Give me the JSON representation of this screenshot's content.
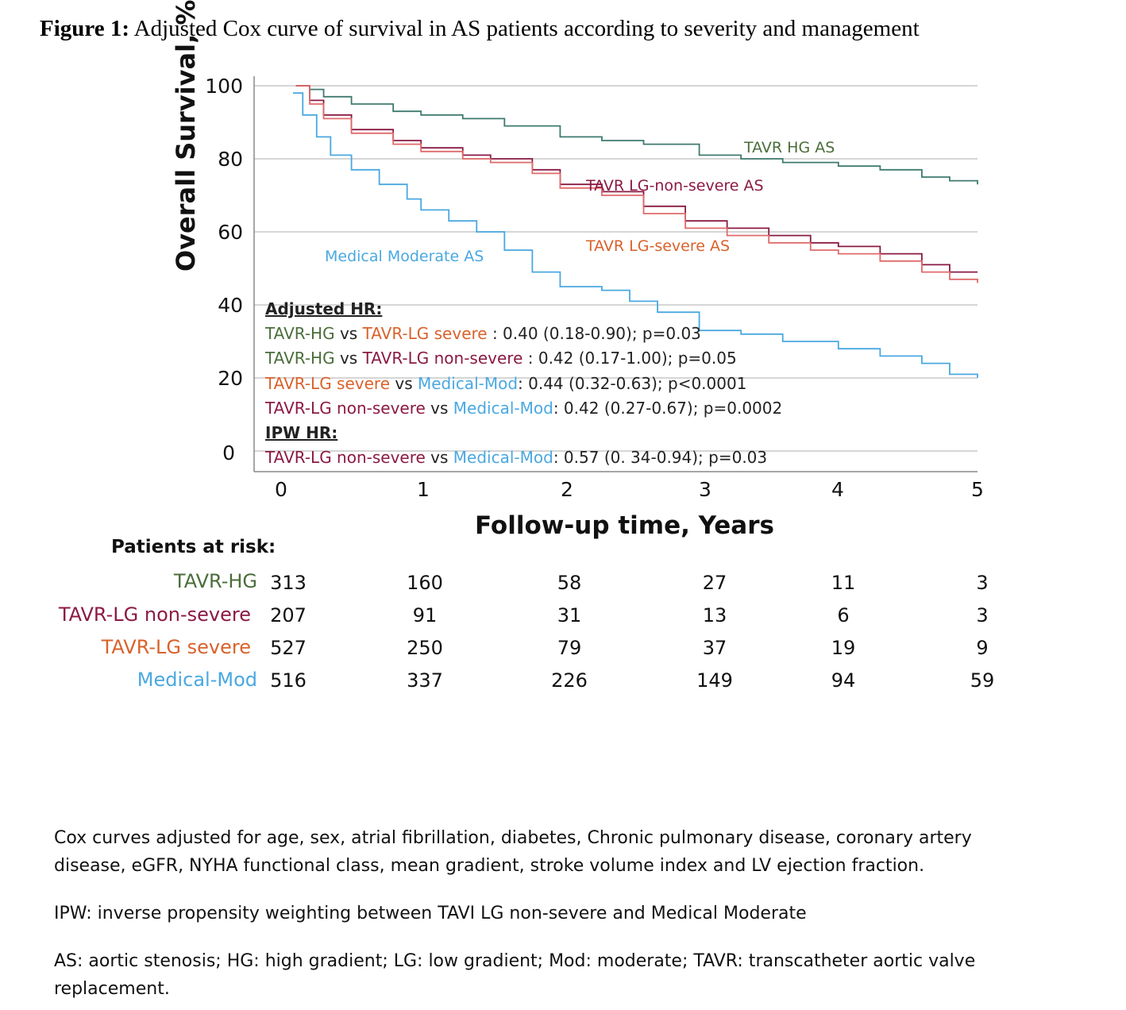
{
  "figure": {
    "title_bold": "Figure 1:",
    "title_rest": " Adjusted Cox curve of survival in AS patients according to severity and management"
  },
  "colors": {
    "tavr_hg": "#4a6e3a",
    "tavr_hg_line": "#3f7a6e",
    "tavr_lg_non_severe": "#8b1a44",
    "tavr_lg_severe": "#e06a6a",
    "medical_mod": "#4aa8e0"
  },
  "chart_data": {
    "type": "line",
    "title": "",
    "xlabel": "Follow-up time, Years",
    "ylabel": "Overall Survival, %",
    "xlim": [
      0,
      5
    ],
    "ylim": [
      0,
      100
    ],
    "x_ticks": [
      "0",
      "1",
      "2",
      "3",
      "4",
      "5"
    ],
    "y_ticks": [
      "100",
      "80",
      "60",
      "40",
      "20",
      "0"
    ],
    "grid": "horizontal",
    "series": [
      {
        "name": "TAVR HG AS",
        "key": "tavr_hg_line",
        "x": [
          0.1,
          0.2,
          0.3,
          0.5,
          0.8,
          1.0,
          1.3,
          1.6,
          2.0,
          2.3,
          2.6,
          3.0,
          3.3,
          3.6,
          4.0,
          4.3,
          4.6,
          4.8,
          5.0
        ],
        "y": [
          100,
          99,
          97,
          95,
          93,
          92,
          91,
          89,
          86,
          85,
          84,
          81,
          80,
          79,
          78,
          77,
          75,
          74,
          73
        ]
      },
      {
        "name": "TAVR LG-non-severe AS",
        "key": "tavr_lg_non_severe",
        "x": [
          0.1,
          0.2,
          0.3,
          0.5,
          0.8,
          1.0,
          1.3,
          1.5,
          1.8,
          2.0,
          2.3,
          2.6,
          2.9,
          3.2,
          3.5,
          3.8,
          4.0,
          4.3,
          4.6,
          4.8,
          5.0
        ],
        "y": [
          100,
          96,
          92,
          88,
          85,
          83,
          81,
          80,
          77,
          73,
          71,
          67,
          63,
          61,
          59,
          57,
          56,
          54,
          51,
          49,
          49
        ]
      },
      {
        "name": "TAVR LG-severe AS",
        "key": "tavr_lg_severe",
        "x": [
          0.1,
          0.2,
          0.3,
          0.5,
          0.8,
          1.0,
          1.3,
          1.5,
          1.8,
          2.0,
          2.3,
          2.6,
          2.9,
          3.2,
          3.5,
          3.8,
          4.0,
          4.3,
          4.6,
          4.8,
          5.0
        ],
        "y": [
          100,
          95,
          91,
          87,
          84,
          82,
          80,
          79,
          76,
          72,
          70,
          65,
          61,
          59,
          57,
          55,
          54,
          52,
          49,
          47,
          46
        ]
      },
      {
        "name": "Medical Moderate AS",
        "key": "medical_mod",
        "x": [
          0.08,
          0.15,
          0.25,
          0.35,
          0.5,
          0.7,
          0.9,
          1.0,
          1.2,
          1.4,
          1.6,
          1.8,
          2.0,
          2.3,
          2.5,
          2.7,
          3.0,
          3.3,
          3.6,
          4.0,
          4.3,
          4.6,
          4.8,
          5.0
        ],
        "y": [
          98,
          92,
          86,
          81,
          77,
          73,
          69,
          66,
          63,
          60,
          55,
          49,
          45,
          44,
          41,
          38,
          33,
          32,
          30,
          28,
          26,
          24,
          21,
          20
        ]
      }
    ]
  },
  "curve_labels": {
    "hg": "TAVR HG AS",
    "lgns": "TAVR LG-non-severe AS",
    "lgs": "TAVR LG-severe AS",
    "med": "Medical Moderate AS"
  },
  "hr": {
    "adjusted_title": "Adjusted HR:",
    "ipw_title": "IPW HR:",
    "vs": "vs",
    "row1": {
      "a": "TAVR-HG",
      "b": "TAVR-LG severe",
      "stat": " : 0.40 (0.18-0.90); p=0.03"
    },
    "row2": {
      "a": "TAVR-HG",
      "b": "TAVR-LG non-severe",
      "stat": " : 0.42 (0.17-1.00); p=0.05"
    },
    "row3": {
      "a": "TAVR-LG severe",
      "b": "Medical-Mod",
      "stat": ": 0.44 (0.32-0.63); p<0.0001"
    },
    "row4": {
      "a": "TAVR-LG non-severe",
      "b": "Medical-Mod",
      "stat": ": 0.42 (0.27-0.67); p=0.0002"
    },
    "row5": {
      "a": "TAVR-LG non-severe",
      "b": "Medical-Mod",
      "stat": ": 0.57 (0. 34-0.94); p=0.03"
    }
  },
  "risk": {
    "title": "Patients at risk:",
    "rows": [
      {
        "name": "TAVR-HG",
        "values": [
          "313",
          "160",
          "58",
          "27",
          "11",
          "3"
        ]
      },
      {
        "name": "TAVR-LG non-severe",
        "values": [
          "207",
          "91",
          "31",
          "13",
          "6",
          "3"
        ]
      },
      {
        "name": "TAVR-LG severe",
        "values": [
          "527",
          "250",
          "79",
          "37",
          "19",
          "9"
        ]
      },
      {
        "name": "Medical-Mod",
        "values": [
          "516",
          "337",
          "226",
          "149",
          "94",
          "59"
        ]
      }
    ]
  },
  "notes": {
    "n1": "Cox curves adjusted for age, sex, atrial fibrillation, diabetes, Chronic pulmonary disease, coronary artery disease, eGFR, NYHA functional class, mean gradient, stroke volume index and LV ejection fraction.",
    "n2": "IPW: inverse propensity weighting between TAVI LG non-severe and Medical Moderate",
    "n3": "AS: aortic stenosis; HG: high gradient; LG: low gradient; Mod: moderate; TAVR: transcatheter aortic valve replacement."
  }
}
